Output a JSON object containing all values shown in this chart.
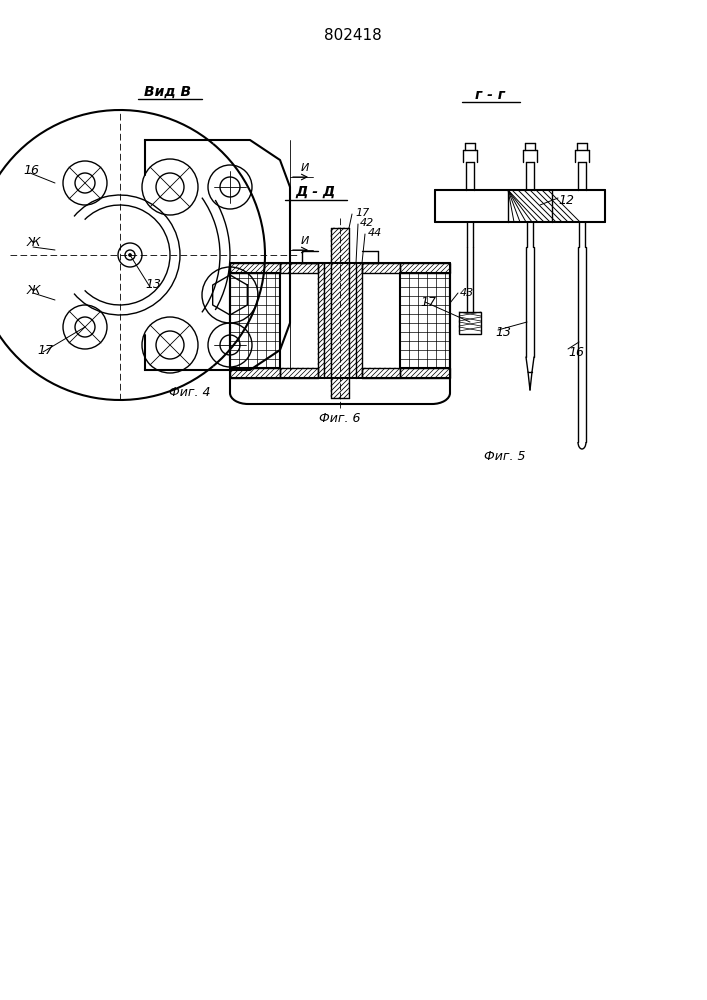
{
  "title": "802418",
  "bg_color": "#ffffff",
  "line_color": "#000000",
  "fig4_label": "Фиг. 4",
  "fig5_label": "Фиг. 5",
  "fig6_label": "Фиг. 6",
  "vid_label": "Вид В",
  "gg_label": "г - г",
  "aa_label": "Д - Д"
}
